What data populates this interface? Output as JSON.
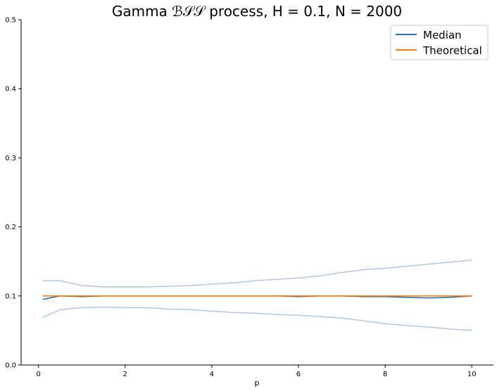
{
  "chart_data": {
    "type": "line",
    "title": "Gamma ℬ𝒮𝒮 process, H = 0.1, N = 2000",
    "xlabel": "p",
    "ylabel": "",
    "xlim": [
      -0.4,
      10.5
    ],
    "ylim": [
      0.0,
      0.5
    ],
    "xticks": [
      "0",
      "2",
      "4",
      "6",
      "8",
      "10"
    ],
    "yticks": [
      "0.0",
      "0.1",
      "0.2",
      "0.3",
      "0.4",
      "0.5"
    ],
    "grid": false,
    "legend_position": "top-right",
    "legend": [
      {
        "label": "Median",
        "color": "#1f77b4"
      },
      {
        "label": "Theoretical",
        "color": "#ff7f0e"
      }
    ],
    "x": [
      0.1,
      0.5,
      1.0,
      1.5,
      2.0,
      2.5,
      3.0,
      3.5,
      4.0,
      4.5,
      5.0,
      5.5,
      6.0,
      6.5,
      7.0,
      7.5,
      8.0,
      8.5,
      9.0,
      9.5,
      10.0
    ],
    "series": [
      {
        "name": "Median",
        "color": "#1f77b4",
        "values": [
          0.095,
          0.1,
          0.099,
          0.1,
          0.1,
          0.1,
          0.1,
          0.1,
          0.1,
          0.1,
          0.1,
          0.1,
          0.099,
          0.1,
          0.1,
          0.099,
          0.099,
          0.098,
          0.097,
          0.098,
          0.1
        ]
      },
      {
        "name": "Theoretical",
        "color": "#ff7f0e",
        "values": [
          0.1,
          0.1,
          0.1,
          0.1,
          0.1,
          0.1,
          0.1,
          0.1,
          0.1,
          0.1,
          0.1,
          0.1,
          0.1,
          0.1,
          0.1,
          0.1,
          0.1,
          0.1,
          0.1,
          0.1,
          0.1
        ]
      },
      {
        "name": "",
        "color": "#aec7e8",
        "values": [
          0.122,
          0.122,
          0.115,
          0.113,
          0.113,
          0.113,
          0.114,
          0.115,
          0.117,
          0.119,
          0.122,
          0.124,
          0.126,
          0.129,
          0.134,
          0.138,
          0.14,
          0.143,
          0.146,
          0.149,
          0.152
        ]
      },
      {
        "name": "",
        "color": "#aec7e8",
        "values": [
          0.069,
          0.08,
          0.083,
          0.084,
          0.083,
          0.083,
          0.081,
          0.08,
          0.078,
          0.076,
          0.075,
          0.073,
          0.072,
          0.07,
          0.068,
          0.064,
          0.06,
          0.057,
          0.055,
          0.052,
          0.05
        ]
      }
    ]
  }
}
